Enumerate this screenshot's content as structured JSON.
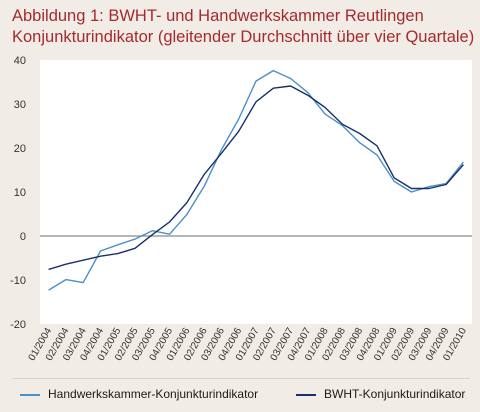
{
  "chart_data": {
    "type": "line",
    "title_line1": "Abbildung 1: BWHT- und Handwerkskammer  Reutlingen",
    "title_line2": "Konjunkturindikator (gleitender Durchschnitt über vier Quartale)",
    "x": [
      "01/2004",
      "02/2004",
      "03/2004",
      "04/2004",
      "01/2005",
      "02/2005",
      "03/2005",
      "04/2005",
      "01/2006",
      "02/2006",
      "03/2006",
      "04/2006",
      "01/2007",
      "02/2007",
      "03/2007",
      "04/2007",
      "01/2008",
      "02/2008",
      "03/2008",
      "04/2008",
      "01/2009",
      "02/2009",
      "03/2009",
      "04/2009",
      "01/2010"
    ],
    "ylim": [
      -20,
      40
    ],
    "yticks": [
      40,
      30,
      20,
      10,
      0,
      -10,
      -20
    ],
    "grid": false,
    "zero_line": true,
    "legend_position": "bottom",
    "series": [
      {
        "name": "Handwerkskammer-Konjunkturindikator",
        "color": "#4a90c8",
        "values": [
          -12.3,
          -9.9,
          -10.6,
          -3.4,
          -2.0,
          -0.7,
          1.2,
          0.4,
          4.9,
          11.3,
          19.6,
          26.6,
          35.2,
          37.6,
          35.8,
          32.6,
          27.7,
          25.1,
          21.2,
          18.4,
          12.4,
          10.0,
          11.2,
          11.9,
          16.8
        ]
      },
      {
        "name": "BWHT-Konjunkturindikator",
        "color": "#1b2f6e",
        "values": [
          -7.6,
          -6.4,
          -5.5,
          -4.6,
          -4.0,
          -2.8,
          0.3,
          3.2,
          7.6,
          14.0,
          18.8,
          23.8,
          30.5,
          33.6,
          34.1,
          32.0,
          29.2,
          25.4,
          23.3,
          20.5,
          13.2,
          10.8,
          10.8,
          11.7,
          16.2
        ]
      }
    ]
  }
}
